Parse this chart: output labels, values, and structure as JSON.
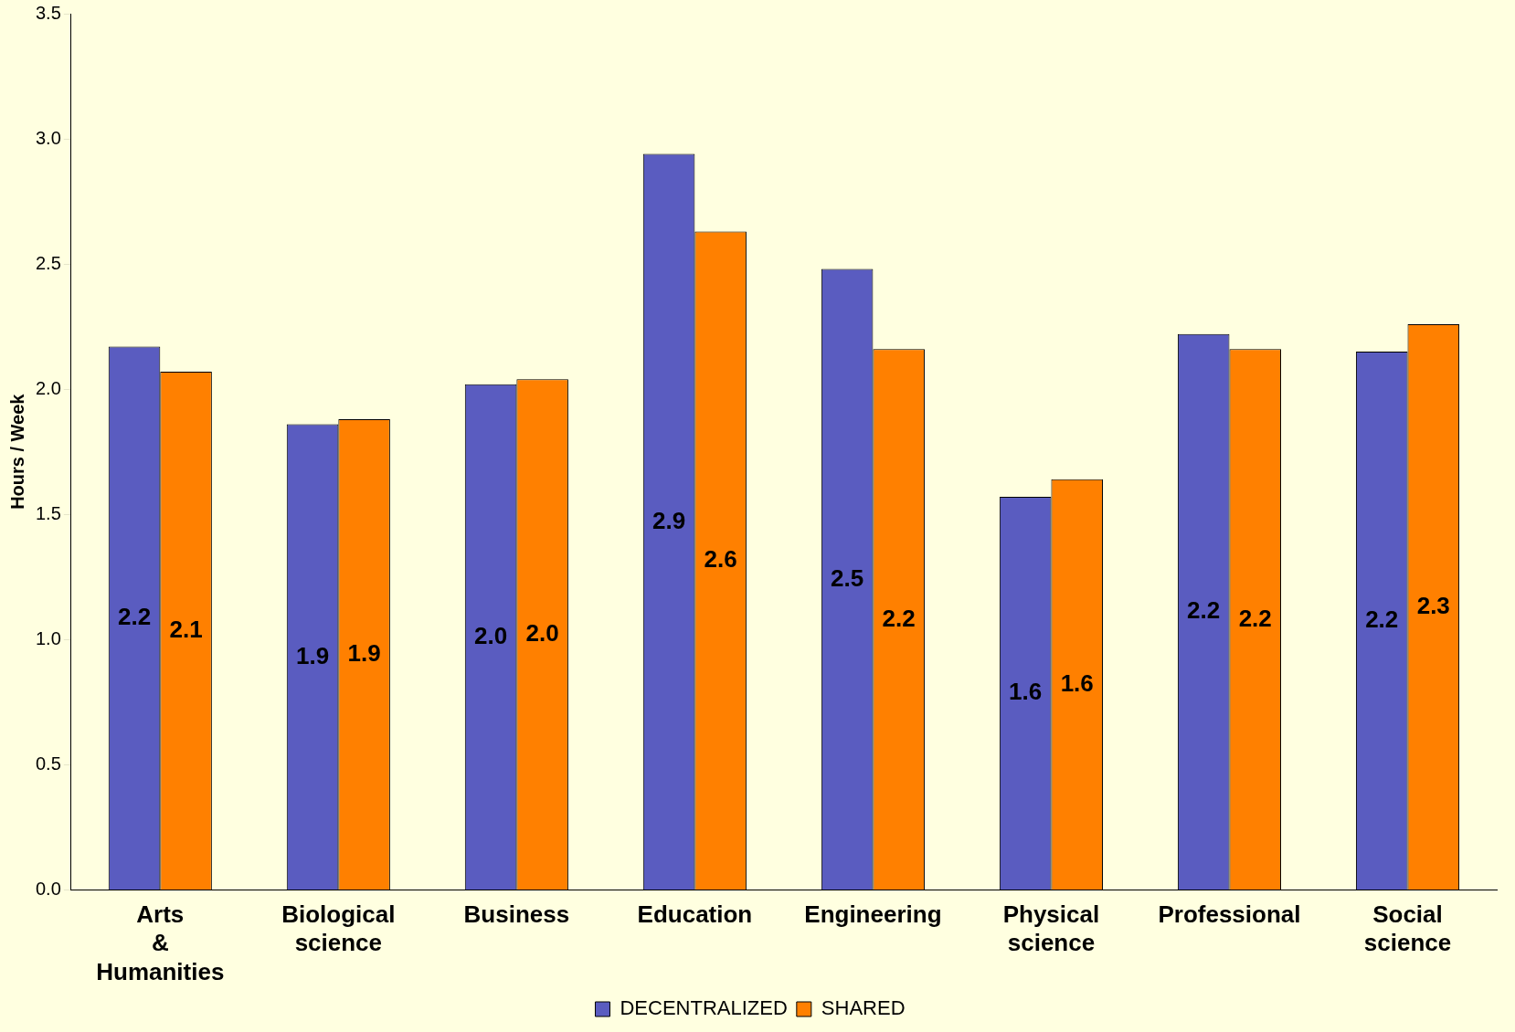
{
  "chart_data": {
    "type": "bar",
    "ylabel": "Hours / Week",
    "categories": [
      "Arts & Humanities",
      "Biological science",
      "Business",
      "Education",
      "Engineering",
      "Physical science",
      "Professional",
      "Social science"
    ],
    "series": [
      {
        "name": "DECENTRALIZED",
        "color": "#5a5cc0",
        "values": [
          2.17,
          1.86,
          2.02,
          2.94,
          2.48,
          1.57,
          2.22,
          2.15
        ],
        "value_labels": [
          "2.2",
          "1.9",
          "2.0",
          "2.9",
          "2.5",
          "1.6",
          "2.2",
          "2.2"
        ]
      },
      {
        "name": "SHARED",
        "color": "#ff8000",
        "values": [
          2.07,
          1.88,
          2.04,
          2.63,
          2.16,
          1.64,
          2.16,
          2.26
        ],
        "value_labels": [
          "2.1",
          "1.9",
          "2.0",
          "2.6",
          "2.2",
          "1.6",
          "2.2",
          "2.3"
        ]
      }
    ],
    "ylim": [
      0,
      3.5
    ],
    "yticks": [
      {
        "value": 0,
        "label": "0.0"
      },
      {
        "value": 0.5,
        "label": "0.5"
      },
      {
        "value": 1,
        "label": "1.0"
      },
      {
        "value": 1.5,
        "label": "1.5"
      },
      {
        "value": 2,
        "label": "2.0"
      },
      {
        "value": 2.5,
        "label": "2.5"
      },
      {
        "value": 3,
        "label": "3.0"
      },
      {
        "value": 3.5,
        "label": "3.5"
      }
    ],
    "grid": false,
    "legend": "bottom"
  }
}
